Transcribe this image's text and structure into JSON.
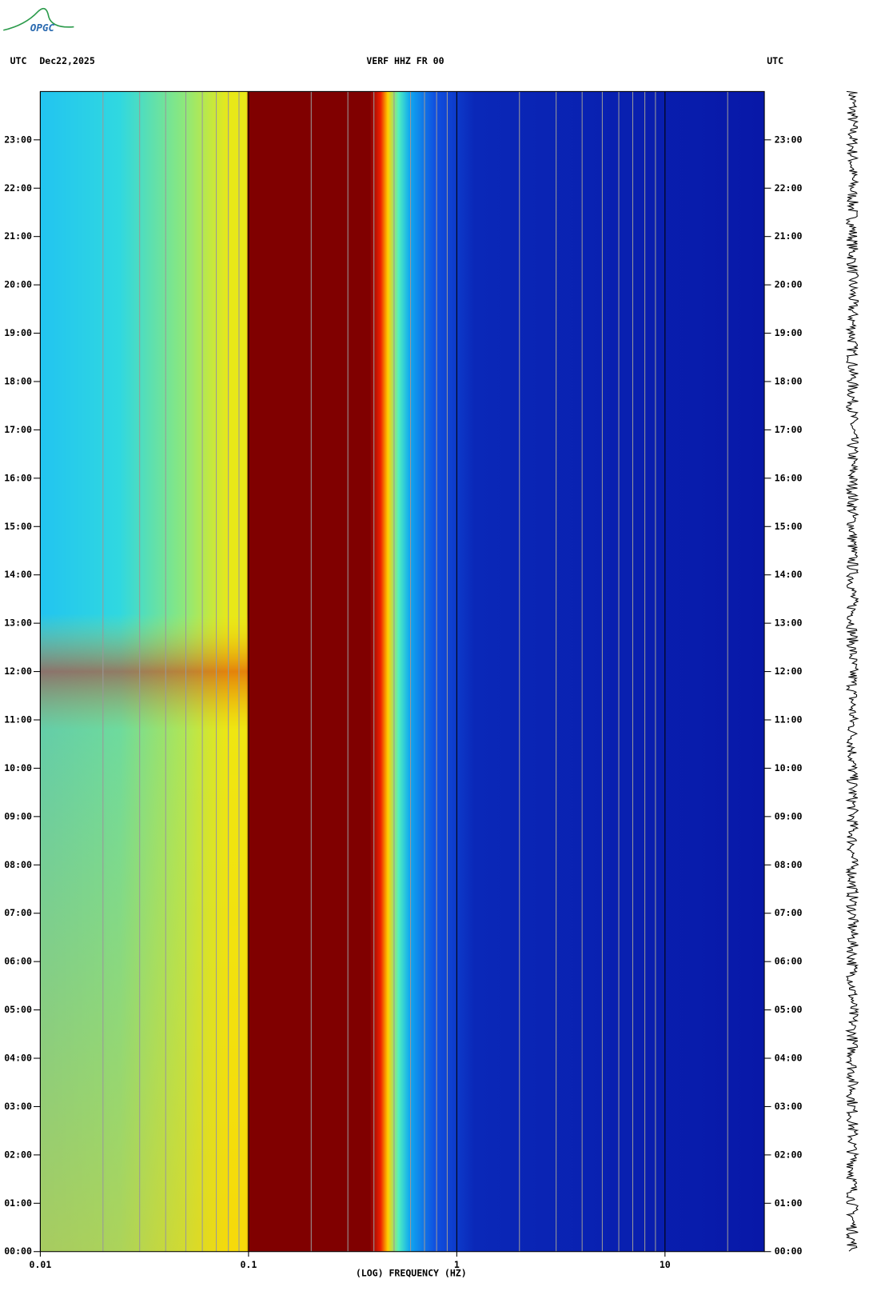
{
  "logo": "OPGC",
  "chart_data": {
    "type": "spectrogram",
    "title": "VERF HHZ FR 00",
    "left_label": "UTC",
    "date": "Dec22,2025",
    "right_label": "UTC",
    "xlabel": "(LOG) FREQUENCY (HZ)",
    "xscale": "log",
    "xlim": [
      0.01,
      30
    ],
    "xticks": [
      0.01,
      0.1,
      1,
      10
    ],
    "xminorticks": [
      0.02,
      0.03,
      0.04,
      0.05,
      0.06,
      0.07,
      0.08,
      0.09,
      0.2,
      0.3,
      0.4,
      0.5,
      0.6,
      0.7,
      0.8,
      0.9,
      2,
      3,
      4,
      5,
      6,
      7,
      8,
      9,
      20
    ],
    "ylim": [
      0,
      24
    ],
    "yticks": [
      {
        "value": 0,
        "label": "00:00"
      },
      {
        "value": 1,
        "label": "01:00"
      },
      {
        "value": 2,
        "label": "02:00"
      },
      {
        "value": 3,
        "label": "03:00"
      },
      {
        "value": 4,
        "label": "04:00"
      },
      {
        "value": 5,
        "label": "05:00"
      },
      {
        "value": 6,
        "label": "06:00"
      },
      {
        "value": 7,
        "label": "07:00"
      },
      {
        "value": 8,
        "label": "08:00"
      },
      {
        "value": 9,
        "label": "09:00"
      },
      {
        "value": 10,
        "label": "10:00"
      },
      {
        "value": 11,
        "label": "11:00"
      },
      {
        "value": 12,
        "label": "12:00"
      },
      {
        "value": 13,
        "label": "13:00"
      },
      {
        "value": 14,
        "label": "14:00"
      },
      {
        "value": 15,
        "label": "15:00"
      },
      {
        "value": 16,
        "label": "16:00"
      },
      {
        "value": 17,
        "label": "17:00"
      },
      {
        "value": 18,
        "label": "18:00"
      },
      {
        "value": 19,
        "label": "19:00"
      },
      {
        "value": 20,
        "label": "20:00"
      },
      {
        "value": 21,
        "label": "21:00"
      },
      {
        "value": 22,
        "label": "22:00"
      },
      {
        "value": 23,
        "label": "23:00"
      }
    ]
  }
}
